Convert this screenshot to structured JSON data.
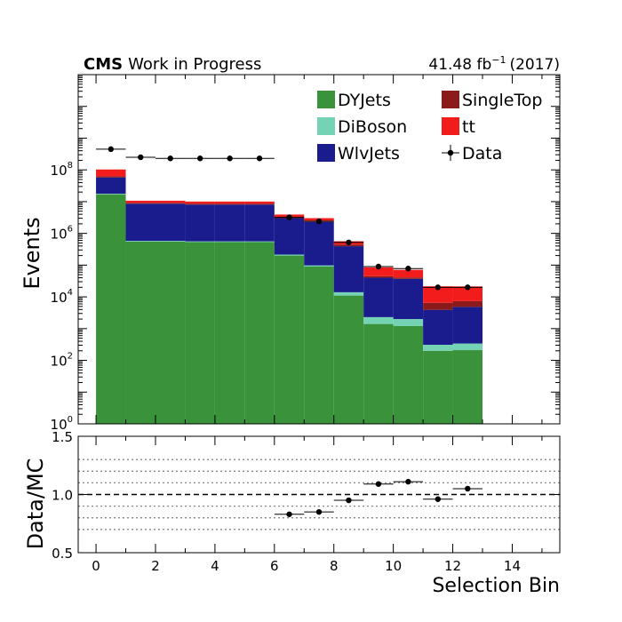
{
  "header": {
    "experiment": "CMS",
    "status": "Work in Progress",
    "lumi_value": "41.48 fb",
    "lumi_exp": "−1",
    "lumi_year": "(2017)"
  },
  "chart_data": [
    {
      "type": "bar",
      "subtype": "stacked-histogram",
      "ylabel": "Events",
      "xlim": [
        -0.6,
        15.6
      ],
      "ylim": [
        1,
        100000000000
      ],
      "yscale": "log",
      "bin_edges": [
        0,
        1,
        2,
        3,
        4,
        5,
        6,
        7,
        8,
        9,
        10,
        11,
        12,
        13
      ],
      "y_ticks": [
        {
          "value": 1,
          "base": "10",
          "exp": "0"
        },
        {
          "value": 100,
          "base": "10",
          "exp": "2"
        },
        {
          "value": 10000,
          "base": "10",
          "exp": "4"
        },
        {
          "value": 1000000,
          "base": "10",
          "exp": "6"
        },
        {
          "value": 100000000,
          "base": "10",
          "exp": "8"
        }
      ],
      "series": [
        {
          "name": "DYJets",
          "color": "#3a933a",
          "values": [
            17000000,
            550000,
            550000,
            530000,
            530000,
            530000,
            200000,
            90000,
            11000,
            1400,
            1200,
            200,
            210
          ]
        },
        {
          "name": "DiBoson",
          "color": "#74d3b4",
          "values": [
            800000,
            30000,
            30000,
            30000,
            30000,
            30000,
            15000,
            8000,
            3000,
            900,
            800,
            110,
            130
          ]
        },
        {
          "name": "WlvJets",
          "color": "#1a1b8c",
          "values": [
            40000000,
            8000000,
            8000000,
            7500000,
            7500000,
            7500000,
            2800000,
            2200000,
            380000,
            38000,
            35000,
            3600,
            4500
          ]
        },
        {
          "name": "SingleTop",
          "color": "#8b1a1a",
          "values": [
            5000000,
            600000,
            600000,
            600000,
            600000,
            600000,
            300000,
            220000,
            50000,
            4500,
            4000,
            2600,
            2500
          ]
        },
        {
          "name": "tt",
          "color": "#f21c1c",
          "values": [
            40000000,
            1500000,
            1500000,
            1400000,
            1400000,
            1400000,
            600000,
            500000,
            120000,
            40000,
            30000,
            15000,
            14000
          ]
        }
      ],
      "data_points": {
        "name": "Data",
        "x": [
          0.5,
          1.5,
          2.5,
          3.5,
          4.5,
          5.5,
          6.5,
          7.5,
          8.5,
          9.5,
          10.5,
          11.5,
          12.5
        ],
        "y": [
          450000000,
          250000000,
          230000000,
          230000000,
          230000000,
          230000000,
          3200000,
          2400000,
          520000,
          90000,
          78000,
          20000,
          20000
        ]
      },
      "legend": {
        "placement": "top-right",
        "entries": [
          {
            "name": "DYJets",
            "kind": "box",
            "color": "#3a933a"
          },
          {
            "name": "SingleTop",
            "kind": "box",
            "color": "#8b1a1a"
          },
          {
            "name": "DiBoson",
            "kind": "box",
            "color": "#74d3b4"
          },
          {
            "name": "tt",
            "kind": "box",
            "color": "#f21c1c"
          },
          {
            "name": "WlvJets",
            "kind": "box",
            "color": "#1a1b8c"
          },
          {
            "name": "Data",
            "kind": "marker",
            "color": "#000000"
          }
        ]
      }
    },
    {
      "type": "scatter",
      "subtype": "ratio",
      "xlabel": "Selection Bin",
      "ylabel": "Data/MC",
      "xlim": [
        -0.6,
        15.6
      ],
      "ylim": [
        0.5,
        1.5
      ],
      "x_ticks": [
        0,
        2,
        4,
        6,
        8,
        10,
        12,
        14
      ],
      "y_ticks": [
        "0.5",
        "1.0",
        "1.5"
      ],
      "reference_line": 1.0,
      "grid_lines": [
        0.7,
        0.8,
        0.9,
        1.1,
        1.2,
        1.3
      ],
      "x": [
        6.5,
        7.5,
        8.5,
        9.5,
        10.5,
        11.5,
        12.5
      ],
      "y": [
        0.83,
        0.85,
        0.95,
        1.09,
        1.11,
        0.96,
        1.05
      ]
    }
  ]
}
